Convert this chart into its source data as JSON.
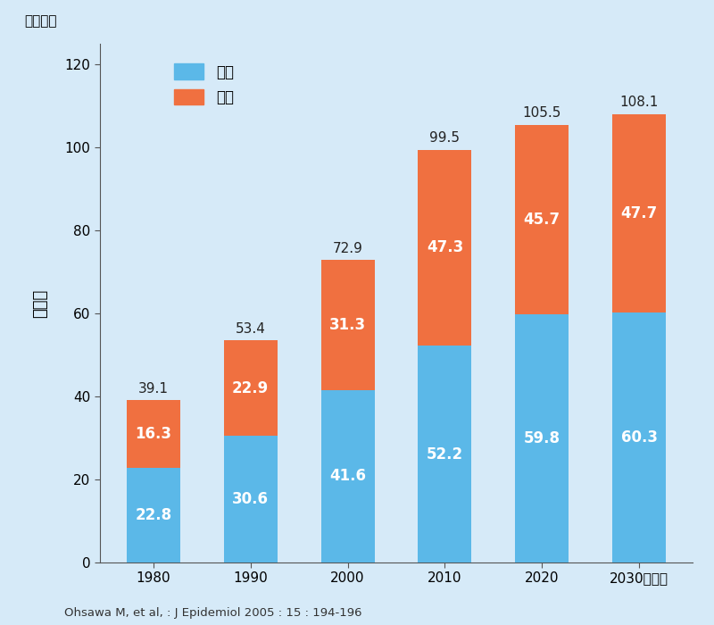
{
  "years": [
    "1980",
    "1990",
    "2000",
    "2010",
    "2020",
    "2030（年）"
  ],
  "male_values": [
    22.8,
    30.6,
    41.6,
    52.2,
    59.8,
    60.3
  ],
  "female_values": [
    16.3,
    22.9,
    31.3,
    47.3,
    45.7,
    47.7
  ],
  "totals": [
    39.1,
    53.4,
    72.9,
    99.5,
    105.5,
    108.1
  ],
  "male_color": "#5BB8E8",
  "female_color": "#F07040",
  "background_color": "#D6EAF8",
  "bar_text_color_white": "#FFFFFF",
  "bar_text_color_dark": "#222222",
  "ylabel_text": "患者数",
  "yunits_text": "（万人）",
  "legend_male": "男性",
  "legend_female": "女性",
  "footnote": "Ohsawa M, et al, : J Epidemiol 2005 : 15 : 194-196",
  "ylim": [
    0,
    125
  ],
  "yticks": [
    0,
    20,
    40,
    60,
    80,
    100,
    120
  ],
  "bar_width": 0.55
}
